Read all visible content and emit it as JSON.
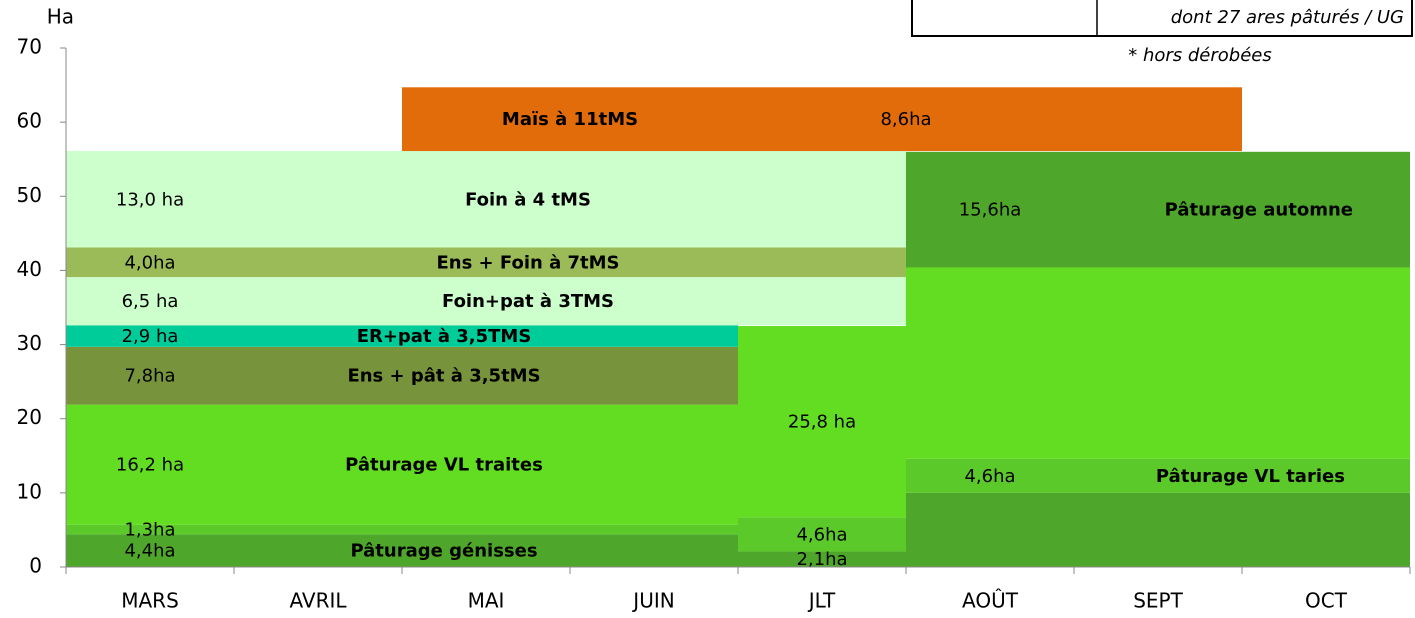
{
  "chart_data": {
    "type": "stacked-calendar",
    "y_label": "Ha",
    "categories": [
      "MARS",
      "AVRIL",
      "MAI",
      "JUIN",
      "JLT",
      "AOÛT",
      "SEPT",
      "OCT"
    ],
    "ylim": [
      0,
      70
    ],
    "yticks": [
      0,
      10,
      20,
      30,
      40,
      50,
      60,
      70
    ],
    "notes": [
      "dont 27  ares pâturés / UG",
      "* hors dérobées"
    ],
    "periods": [
      {
        "span": [
          0,
          4
        ],
        "segments": [
          {
            "name": "Pâturage génisses",
            "value": 4.4,
            "value_label": "4,4ha",
            "color": "#4ea72a"
          },
          {
            "value": 1.3,
            "value_label": "1,3ha",
            "color": "#5cc92a"
          },
          {
            "name": "Pâturage VL traites",
            "value": 16.2,
            "value_label": "16,2 ha",
            "color": "#62dd22"
          },
          {
            "name": "Ens + pât à 3,5tMS",
            "value": 7.8,
            "value_label": "7,8ha",
            "color": "#77933c"
          },
          {
            "name": "ER+pat à 3,5TMS",
            "value": 2.9,
            "value_label": "2,9 ha",
            "color": "#00cc99"
          },
          {
            "name": "Foin+pat à 3TMS",
            "value": 6.5,
            "value_label": "6,5 ha",
            "color": "#ccffcc",
            "span": [
              0,
              5
            ]
          },
          {
            "name": "Ens + Foin à 7tMS",
            "value": 4.0,
            "value_label": "4,0ha",
            "color": "#9bbb59",
            "span": [
              0,
              5
            ]
          },
          {
            "name": "Foin à 4 tMS",
            "value": 13.0,
            "value_label": "13,0 ha",
            "color": "#ccffcc",
            "span": [
              0,
              5
            ]
          },
          {
            "name": "Maïs à 11tMS",
            "value": 8.6,
            "value_label": "8,6ha",
            "color": "#e36c0a",
            "span": [
              2,
              7
            ]
          }
        ]
      },
      {
        "span": [
          4,
          5
        ],
        "segments": [
          {
            "value": 2.1,
            "value_label": "2,1ha",
            "color": "#4ea72a"
          },
          {
            "value": 4.6,
            "value_label": "4,6ha",
            "color": "#5cc92a"
          },
          {
            "value": 25.8,
            "value_label": "25,8 ha",
            "color": "#62dd22"
          }
        ]
      },
      {
        "span": [
          5,
          8
        ],
        "segments": [
          {
            "value": 10,
            "color": "#4ea72a"
          },
          {
            "name": "Pâturage VL taries",
            "value": 4.6,
            "value_label": "4,6ha",
            "color": "#5cc92a"
          },
          {
            "value": 25.8,
            "color": "#62dd22"
          },
          {
            "name": "Pâturage automne",
            "value": 15.6,
            "value_label": "15,6ha",
            "color": "#4ea72a"
          }
        ]
      }
    ]
  }
}
